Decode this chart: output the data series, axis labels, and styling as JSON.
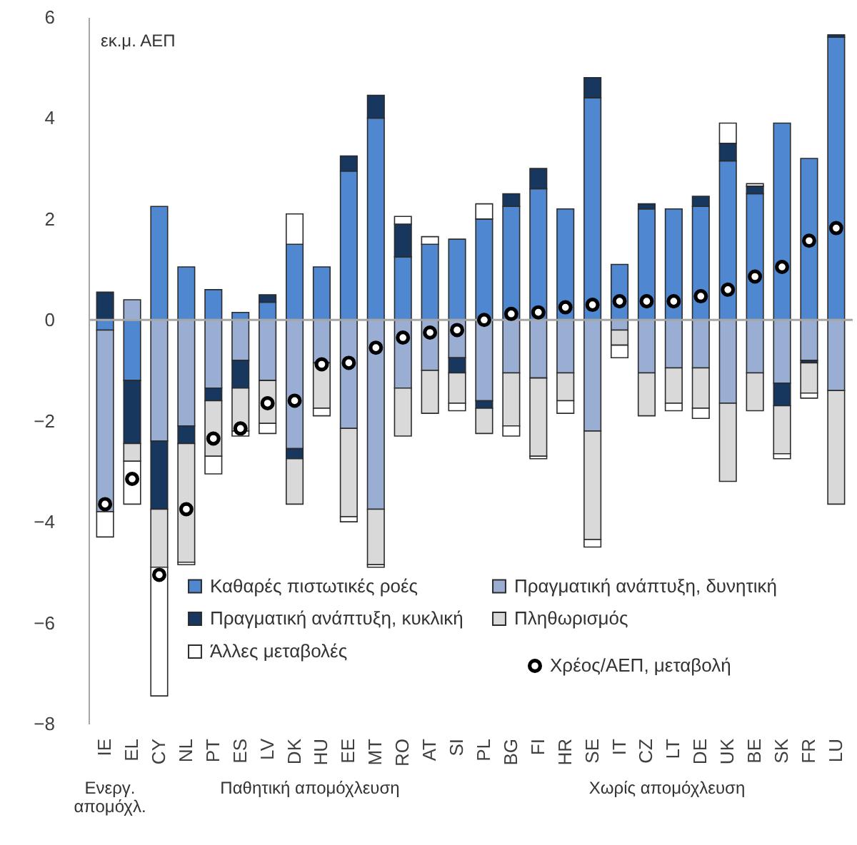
{
  "chart_data": {
    "type": "bar",
    "stacked": true,
    "ylabel": "εκ.μ. ΑΕΠ",
    "categories": [
      "IE",
      "EL",
      "CY",
      "NL",
      "PT",
      "ES",
      "LV",
      "DK",
      "HU",
      "EE",
      "MT",
      "RO",
      "AT",
      "SI",
      "PL",
      "BG",
      "FI",
      "HR",
      "SE",
      "IT",
      "CZ",
      "LT",
      "DE",
      "UK",
      "BE",
      "SK",
      "FR",
      "LU"
    ],
    "series": [
      {
        "name": "Καθαρές πιστωτικές ροές",
        "color": "#4f88d1",
        "values": [
          -0.2,
          -1.2,
          2.25,
          1.05,
          0.6,
          0.15,
          0.35,
          1.5,
          1.05,
          2.95,
          4.0,
          1.25,
          1.5,
          1.6,
          2.0,
          2.25,
          2.6,
          2.2,
          4.4,
          1.1,
          2.2,
          2.2,
          2.25,
          3.15,
          2.5,
          3.9,
          3.2,
          5.6
        ]
      },
      {
        "name": "Πραγματική ανάπτυξη, δυνητική",
        "color": "#9aaed3",
        "values": [
          -3.6,
          0.4,
          -2.4,
          -2.1,
          -1.35,
          -0.8,
          -1.2,
          -2.55,
          -0.85,
          -2.15,
          -3.75,
          -1.35,
          -1.0,
          -0.75,
          -1.6,
          -1.05,
          -1.15,
          -1.05,
          -2.2,
          -0.2,
          -1.05,
          -0.95,
          -0.95,
          -1.65,
          -1.05,
          -1.25,
          -0.8,
          -1.4
        ]
      },
      {
        "name": "Πραγματική ανάπτυξη, κυκλική",
        "color": "#17375e",
        "values": [
          0.55,
          -1.25,
          -1.35,
          -0.35,
          -0.25,
          -0.55,
          0.15,
          -0.2,
          null,
          0.3,
          0.45,
          0.65,
          null,
          -0.3,
          -0.15,
          0.25,
          0.4,
          null,
          0.4,
          null,
          0.1,
          null,
          0.2,
          0.35,
          0.15,
          -0.45,
          -0.05,
          0.05
        ]
      },
      {
        "name": "Πληθωρισμός",
        "color": "#d9d9d9",
        "values": [
          null,
          -0.35,
          -1.15,
          -2.35,
          -1.1,
          -0.85,
          -0.85,
          -0.9,
          -0.9,
          -1.75,
          -1.1,
          -0.95,
          -0.85,
          -0.6,
          -0.5,
          -1.05,
          -1.55,
          -0.55,
          -2.15,
          -0.3,
          -0.85,
          -0.7,
          -0.8,
          -1.55,
          -0.75,
          -0.95,
          -0.6,
          -2.25
        ]
      },
      {
        "name": "Άλλες μεταβολές",
        "color": "#ffffff",
        "values": [
          -0.5,
          -0.85,
          -2.55,
          -0.05,
          -0.35,
          -0.1,
          -0.2,
          0.6,
          -0.15,
          -0.1,
          -0.05,
          0.15,
          0.15,
          -0.15,
          0.3,
          -0.2,
          -0.05,
          -0.25,
          -0.15,
          -0.25,
          null,
          -0.15,
          -0.2,
          0.4,
          0.05,
          -0.1,
          -0.1,
          null
        ]
      },
      {
        "name": "Χρέος/ΑΕΠ, μεταβολή",
        "type": "scatter",
        "color": "#000000",
        "values": [
          -3.65,
          -3.15,
          -5.05,
          -3.75,
          -2.35,
          -2.15,
          -1.65,
          -1.6,
          -0.88,
          -0.85,
          -0.55,
          -0.35,
          -0.25,
          -0.2,
          0,
          0.12,
          0.15,
          0.25,
          0.3,
          0.37,
          0.37,
          0.37,
          0.47,
          0.6,
          0.86,
          1.05,
          1.57,
          1.82
        ]
      }
    ],
    "ylim": [
      -8,
      6
    ],
    "yticks": [
      -8,
      -6,
      -4,
      -2,
      0,
      2,
      4,
      6
    ],
    "ref_lines": [
      {
        "axis": "y",
        "value": 0,
        "color": "#a6a6a6"
      }
    ],
    "marker": "circle",
    "legend": "bottom",
    "grid": false,
    "annotations": [
      "Ενεργ.\nαπομόχλ.",
      "Παθητική απομόχλευση",
      "Χωρίς απομόχλευση"
    ]
  }
}
